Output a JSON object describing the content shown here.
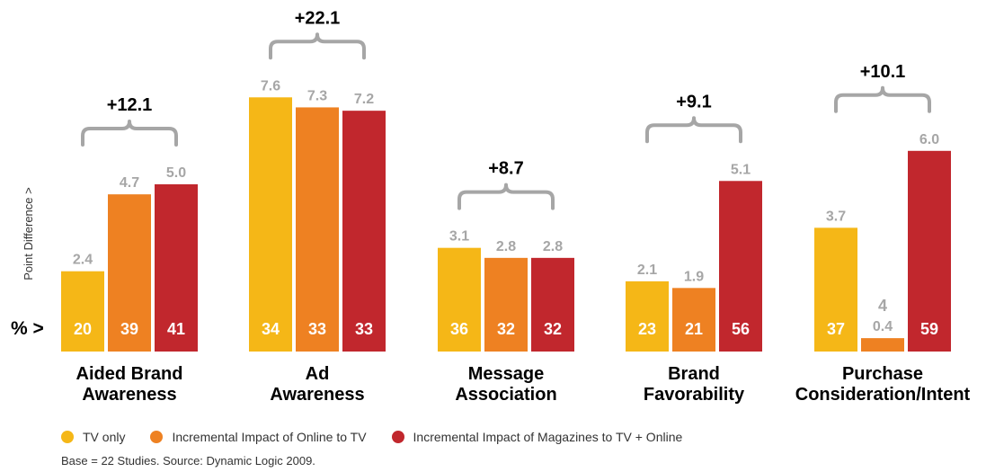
{
  "chart_data": {
    "type": "bar",
    "categories": [
      [
        "Aided Brand",
        "Awareness"
      ],
      [
        "Ad",
        "Awareness"
      ],
      [
        "Message",
        "Association"
      ],
      [
        "Brand",
        "Favorability"
      ],
      [
        "Purchase",
        "Consideration/Intent"
      ]
    ],
    "series": [
      {
        "name": "TV only",
        "color": "#F5B717",
        "values": [
          2.4,
          7.6,
          3.1,
          2.1,
          3.7
        ],
        "base_labels": [
          "20",
          "34",
          "36",
          "23",
          "37"
        ]
      },
      {
        "name": "Incremental Impact of Online to TV",
        "color": "#EE8122",
        "values": [
          4.7,
          7.3,
          2.8,
          1.9,
          0.4
        ],
        "base_labels": [
          "39",
          "33",
          "32",
          "21",
          "4"
        ]
      },
      {
        "name": "Incremental Impact of Magazines to TV + Online",
        "color": "#C1272D",
        "values": [
          5.0,
          7.2,
          2.8,
          5.1,
          6.0
        ],
        "base_labels": [
          "41",
          "33",
          "32",
          "56",
          "59"
        ]
      }
    ],
    "value_labels": [
      [
        "2.4",
        "4.7",
        "5.0"
      ],
      [
        "7.6",
        "7.3",
        "7.2"
      ],
      [
        "3.1",
        "2.8",
        "2.8"
      ],
      [
        "2.1",
        "1.9",
        "5.1"
      ],
      [
        "3.7",
        "0.4",
        "6.0"
      ]
    ],
    "bracket_labels": [
      "+12.1",
      "+22.1",
      "+8.7",
      "+9.1",
      "+10.1"
    ],
    "ylabel": "Point Difference >",
    "row_label": "% >",
    "ylim": [
      0,
      8.3
    ],
    "grid": false,
    "legend_position": "bottom-left",
    "value_label_color": "#A6A6A6",
    "bracket_color": "#A6A6A6"
  },
  "footer": {
    "source": "Base = 22 Studies. Source: Dynamic Logic 2009."
  }
}
